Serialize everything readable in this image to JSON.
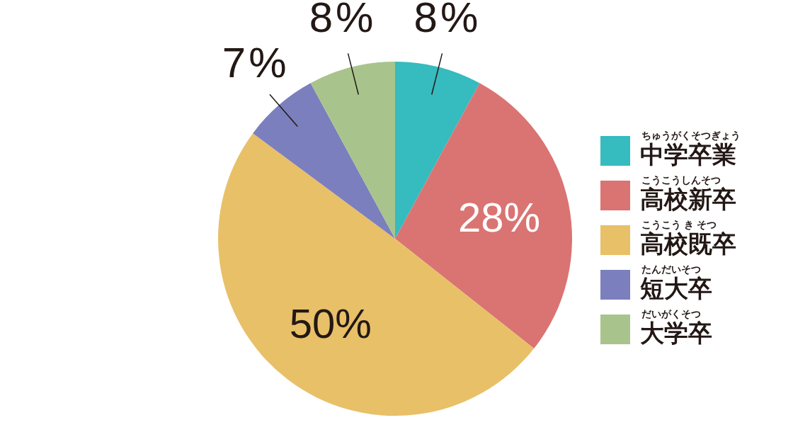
{
  "chart_data": {
    "type": "pie",
    "categories": [
      "中学卒業",
      "高校新卒",
      "高校既卒",
      "短大卒",
      "大学卒"
    ],
    "values": [
      8,
      28,
      50,
      7,
      8
    ],
    "value_labels": [
      "8%",
      "28%",
      "50%",
      "7%",
      "8%"
    ],
    "colors": [
      "#36bbbf",
      "#d97472",
      "#e8c068",
      "#7b7fbd",
      "#a8c48c"
    ],
    "annotations": [
      "ちゅうがくそつぎょう",
      "こうこうしんそつ",
      "こうこう き そつ",
      "たんだいそつ",
      "だいがくそつ"
    ],
    "legend": "right"
  }
}
